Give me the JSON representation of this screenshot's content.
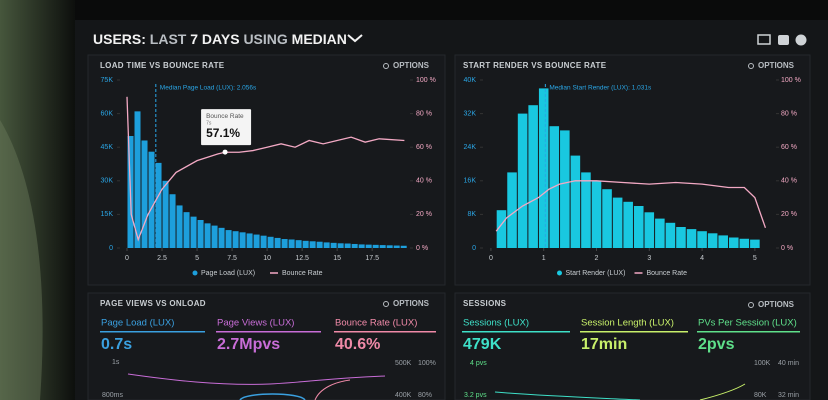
{
  "header": {
    "title_parts": [
      "USERS:",
      "LAST",
      "7 DAYS",
      "USING",
      "MEDIAN"
    ]
  },
  "panels": [
    {
      "title": "LOAD TIME VS BOUNCE RATE",
      "options": "OPTIONS",
      "chart": {
        "type": "histogram",
        "bar_name": "Page Load (LUX)",
        "color": "#1d9fdc",
        "bins": [
          0,
          0.5,
          1,
          1.5,
          2,
          2.5,
          3,
          3.5,
          4,
          4.5,
          5,
          5.5,
          6,
          6.5,
          7,
          7.5,
          8,
          8.5,
          9,
          9.5,
          10,
          10.5,
          11,
          11.5,
          12,
          12.5,
          13,
          13.5,
          14,
          14.5,
          15,
          15.5,
          16,
          16.5,
          17,
          17.5,
          18,
          18.5,
          19,
          19.5,
          20
        ],
        "counts": [
          50000,
          61000,
          48000,
          43000,
          38000,
          30000,
          24000,
          19000,
          16000,
          14000,
          12500,
          11000,
          10000,
          9000,
          8000,
          7500,
          7000,
          6500,
          6000,
          5500,
          5000,
          4500,
          4000,
          3800,
          3500,
          3200,
          3000,
          2800,
          2500,
          2300,
          2100,
          2000,
          1800,
          1600,
          1500,
          1400,
          1300,
          1200,
          1100,
          1000
        ],
        "xlim": [
          -0.5,
          20.2
        ],
        "xticks": [
          0,
          2.5,
          5,
          7.5,
          10,
          12.5,
          15,
          17.5
        ],
        "ylim": [
          0,
          75000
        ],
        "yticks": [
          0,
          {
            "value": 15000,
            "label": "15K"
          },
          {
            "value": 30000,
            "label": "30K"
          },
          {
            "value": 45000,
            "label": "45K"
          },
          {
            "value": 60000,
            "label": "60K"
          },
          {
            "value": 75000,
            "label": "75K"
          }
        ],
        "y2lim": [
          0,
          100
        ],
        "y2ticks": [
          {
            "value": 0,
            "label": "0 %"
          },
          {
            "value": 20,
            "label": "20 %"
          },
          {
            "value": 40,
            "label": "40 %"
          },
          {
            "value": 60,
            "label": "60 %"
          },
          {
            "value": 80,
            "label": "80 %"
          },
          {
            "value": 100,
            "label": "100 %"
          }
        ],
        "line": {
          "name": "Bounce Rate",
          "color": "#f3a9c4",
          "axis": "y2",
          "x": [
            0,
            0.3,
            0.8,
            1.5,
            2.5,
            3.5,
            5,
            6.5,
            7,
            8,
            9,
            10,
            11,
            12,
            13,
            14,
            15,
            16,
            17,
            18,
            19.8
          ],
          "values": [
            90,
            20,
            5,
            20,
            35,
            45,
            52,
            56,
            57,
            57,
            58,
            60,
            62,
            60,
            64,
            62,
            64,
            66,
            63,
            65,
            64
          ]
        },
        "median": {
          "x": 2.056,
          "label": "Median Page Load (LUX): 2.056s"
        },
        "tooltip": {
          "title": "Bounce Rate",
          "subtitle": "7s",
          "value": "57.1%",
          "x": 7,
          "y": 57.1
        }
      }
    },
    {
      "title": "START RENDER VS BOUNCE RATE",
      "options": "OPTIONS",
      "chart": {
        "type": "histogram",
        "bar_name": "Start Render (LUX)",
        "color": "#19c8e0",
        "bins": [
          0.1,
          0.3,
          0.5,
          0.7,
          0.9,
          1.1,
          1.3,
          1.5,
          1.7,
          1.9,
          2.1,
          2.3,
          2.5,
          2.7,
          2.9,
          3.1,
          3.3,
          3.5,
          3.7,
          3.9,
          4.1,
          4.3,
          4.5,
          4.7,
          4.9,
          5.1
        ],
        "counts": [
          9000,
          18000,
          32000,
          34000,
          38000,
          29000,
          28000,
          22000,
          18000,
          16000,
          14000,
          12000,
          11000,
          10000,
          8500,
          7000,
          6000,
          5000,
          4500,
          4000,
          3500,
          3000,
          2500,
          2200,
          2000
        ],
        "xlim": [
          -0.15,
          5.4
        ],
        "xticks": [
          0,
          1,
          2,
          3,
          4,
          5
        ],
        "ylim": [
          0,
          40000
        ],
        "yticks": [
          0,
          {
            "value": 8000,
            "label": "8K"
          },
          {
            "value": 16000,
            "label": "16K"
          },
          {
            "value": 24000,
            "label": "24K"
          },
          {
            "value": 32000,
            "label": "32K"
          },
          {
            "value": 40000,
            "label": "40K"
          }
        ],
        "y2lim": [
          0,
          100
        ],
        "y2ticks": [
          {
            "value": 0,
            "label": "0 %"
          },
          {
            "value": 20,
            "label": "20 %"
          },
          {
            "value": 40,
            "label": "40 %"
          },
          {
            "value": 60,
            "label": "60 %"
          },
          {
            "value": 80,
            "label": "80 %"
          },
          {
            "value": 100,
            "label": "100 %"
          }
        ],
        "line": {
          "name": "Bounce Rate",
          "color": "#f3a9c4",
          "axis": "y2",
          "x": [
            0.1,
            0.3,
            0.6,
            0.9,
            1.1,
            1.3,
            1.6,
            2,
            2.5,
            3,
            3.5,
            4,
            4.5,
            4.8,
            5,
            5.2
          ],
          "values": [
            10,
            18,
            25,
            30,
            35,
            38,
            40,
            40,
            39,
            38,
            39,
            38,
            36,
            36,
            30,
            12
          ]
        },
        "median": {
          "x": 1.031,
          "label": "Median Start Render (LUX): 1.031s"
        }
      }
    },
    {
      "title": "PAGE VIEWS VS ONLOAD",
      "options": "OPTIONS",
      "metrics": [
        {
          "label": "Page Load (LUX)",
          "value": "0.7s"
        },
        {
          "label": "Page Views (LUX)",
          "value": "2.7Mpvs"
        },
        {
          "label": "Bounce Rate (LUX)",
          "value": "40.6%"
        }
      ],
      "axis_labels": [
        "1s",
        "800ms",
        "500K",
        "400K",
        "100%",
        "80%"
      ]
    },
    {
      "title": "SESSIONS",
      "options": "OPTIONS",
      "metrics": [
        {
          "label": "Sessions (LUX)",
          "value": "479K"
        },
        {
          "label": "Session Length (LUX)",
          "value": "17min"
        },
        {
          "label": "PVs Per Session (LUX)",
          "value": "2pvs"
        }
      ],
      "axis_labels": [
        "4 pvs",
        "3.2 pvs",
        "100K",
        "80K",
        "40 min",
        "32 min"
      ]
    }
  ]
}
